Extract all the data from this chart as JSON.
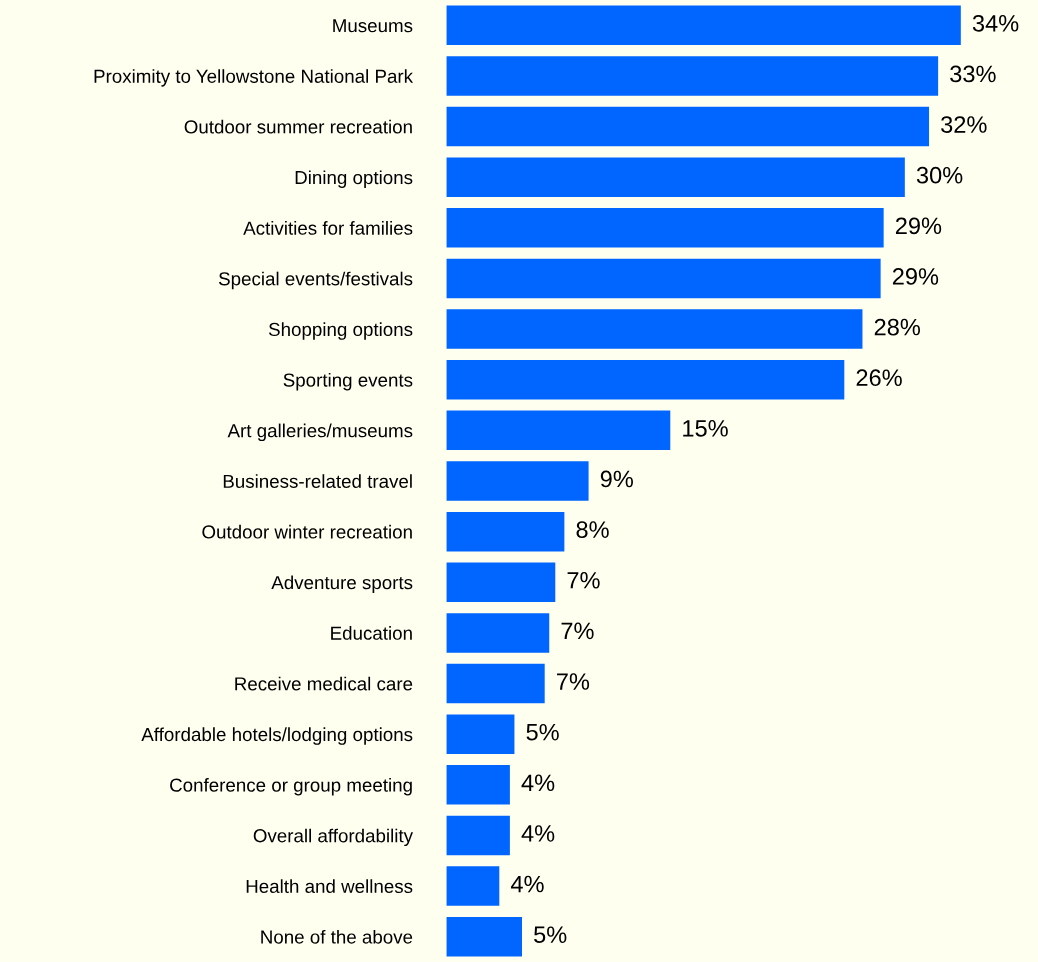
{
  "chart_data": {
    "type": "bar",
    "orientation": "horizontal",
    "categories": [
      "Museums",
      "Proximity to Yellowstone National Park",
      "Outdoor summer recreation",
      "Dining options",
      "Activities for families",
      "Special events/festivals",
      "Shopping options",
      "Sporting events",
      "Art galleries/museums",
      "Business-related travel",
      "Outdoor winter recreation",
      "Adventure sports",
      "Education",
      "Receive medical care",
      "Affordable hotels/lodging options",
      "Conference or group meeting",
      "Overall affordability",
      "Health and wellness",
      "None of the above"
    ],
    "values": [
      34.0,
      32.5,
      31.9,
      30.3,
      28.9,
      28.7,
      27.5,
      26.3,
      14.8,
      9.4,
      7.8,
      7.2,
      6.8,
      6.5,
      4.5,
      4.2,
      4.2,
      3.5,
      5.0
    ],
    "value_labels": [
      "34%",
      "33%",
      "32%",
      "30%",
      "29%",
      "29%",
      "28%",
      "26%",
      "15%",
      "9%",
      "8%",
      "7%",
      "7%",
      "7%",
      "5%",
      "4%",
      "4%",
      "4%",
      "5%"
    ],
    "color": "#0066ff",
    "grid": false,
    "legend": false
  }
}
